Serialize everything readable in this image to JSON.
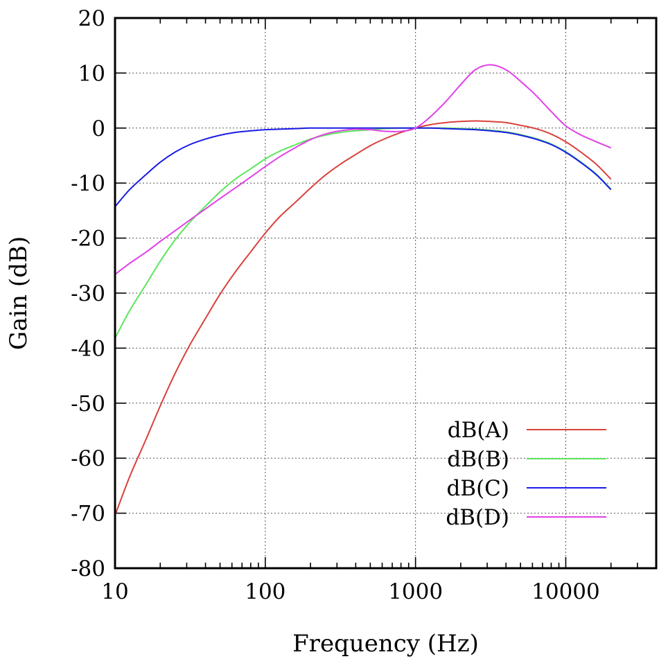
{
  "chart_data": {
    "type": "line",
    "title": "",
    "xlabel": "Frequency (Hz)",
    "ylabel": "Gain (dB)",
    "xscale": "log",
    "xlim": [
      10,
      40000
    ],
    "ylim": [
      -80,
      20
    ],
    "x_ticks": [
      10,
      100,
      1000,
      10000
    ],
    "x_tick_labels": [
      "10",
      "100",
      "1000",
      "10000"
    ],
    "y_ticks": [
      -80,
      -70,
      -60,
      -50,
      -40,
      -30,
      -20,
      -10,
      0,
      10,
      20
    ],
    "y_tick_labels": [
      "-80",
      "-70",
      "-60",
      "-50",
      "-40",
      "-30",
      "-20",
      "-10",
      "0",
      "10",
      "20"
    ],
    "grid": true,
    "legend_position": "bottom-right",
    "x": [
      10,
      12.5,
      16,
      20,
      25,
      31.5,
      40,
      50,
      63,
      80,
      100,
      125,
      160,
      200,
      250,
      315,
      400,
      500,
      630,
      800,
      1000,
      1250,
      1600,
      2000,
      2500,
      3150,
      4000,
      5000,
      6300,
      8000,
      10000,
      12500,
      16000,
      20000
    ],
    "series": [
      {
        "name": "dB(A)",
        "color": "#d9403a",
        "values": [
          -70.4,
          -63.4,
          -56.7,
          -50.5,
          -44.7,
          -39.4,
          -34.6,
          -30.2,
          -26.2,
          -22.5,
          -19.1,
          -16.1,
          -13.4,
          -10.9,
          -8.6,
          -6.6,
          -4.8,
          -3.2,
          -1.9,
          -0.8,
          0.0,
          0.6,
          1.0,
          1.2,
          1.3,
          1.2,
          1.0,
          0.5,
          -0.1,
          -1.1,
          -2.5,
          -4.3,
          -6.6,
          -9.3
        ]
      },
      {
        "name": "dB(B)",
        "color": "#5ae65a",
        "values": [
          -38.2,
          -33.2,
          -28.5,
          -24.2,
          -20.4,
          -17.1,
          -14.2,
          -11.6,
          -9.3,
          -7.4,
          -5.6,
          -4.2,
          -3.0,
          -2.0,
          -1.3,
          -0.8,
          -0.5,
          -0.3,
          -0.1,
          0.0,
          0.0,
          0.0,
          0.0,
          -0.1,
          -0.2,
          -0.4,
          -0.7,
          -1.2,
          -1.9,
          -2.9,
          -4.3,
          -6.1,
          -8.4,
          -11.1
        ]
      },
      {
        "name": "dB(C)",
        "color": "#1a1ae6",
        "values": [
          -14.3,
          -11.2,
          -8.5,
          -6.2,
          -4.4,
          -3.0,
          -2.0,
          -1.3,
          -0.8,
          -0.5,
          -0.3,
          -0.2,
          -0.1,
          0.0,
          0.0,
          0.0,
          0.0,
          0.0,
          0.0,
          0.0,
          0.0,
          0.0,
          -0.1,
          -0.2,
          -0.3,
          -0.5,
          -0.8,
          -1.3,
          -2.0,
          -3.0,
          -4.4,
          -6.2,
          -8.5,
          -11.2
        ]
      },
      {
        "name": "dB(D)",
        "color": "#e040e8",
        "values": [
          -26.6,
          -24.6,
          -22.6,
          -20.6,
          -18.7,
          -16.7,
          -14.7,
          -12.8,
          -10.9,
          -8.9,
          -7.0,
          -5.2,
          -3.5,
          -2.1,
          -1.1,
          -0.5,
          -0.2,
          -0.3,
          -0.6,
          -0.6,
          0.0,
          2.0,
          4.9,
          7.9,
          10.6,
          11.5,
          10.6,
          8.5,
          6.0,
          3.0,
          0.4,
          -1.2,
          -2.5,
          -3.6
        ]
      }
    ]
  }
}
